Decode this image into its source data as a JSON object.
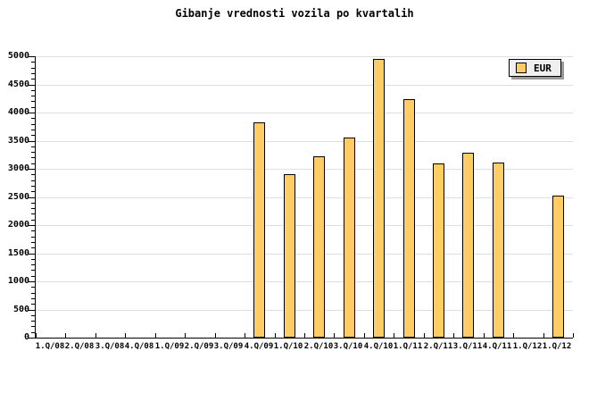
{
  "title": "Gibanje vrednosti vozila po kvartalih",
  "legend": {
    "label": "EUR"
  },
  "colors": {
    "background": "#FFFFFF",
    "bar_fill": "#FFCC66",
    "bar_border": "#000000",
    "grid": "#DEDEDE",
    "axis": "#000000",
    "tick": "#000000",
    "text": "#000000",
    "legend_bg": "#EFEFEF",
    "legend_border": "#000000",
    "legend_shadow": "#999999"
  },
  "chart_data": {
    "type": "bar",
    "title": "Gibanje vrednosti vozila po kvartalih",
    "xlabel": "",
    "ylabel": "",
    "categories": [
      "1.Q/08",
      "2.Q/08",
      "3.Q/08",
      "4.Q/08",
      "1.Q/09",
      "2.Q/09",
      "3.Q/09",
      "4.Q/09",
      "1.Q/10",
      "2.Q/10",
      "3.Q/10",
      "4.Q/10",
      "1.Q/11",
      "2.Q/11",
      "3.Q/11",
      "4.Q/11",
      "1.Q/12",
      "1.Q/12"
    ],
    "series": [
      {
        "name": "EUR",
        "values": [
          null,
          null,
          null,
          null,
          null,
          null,
          null,
          3820,
          2900,
          3230,
          3550,
          4960,
          4240,
          3100,
          3290,
          3110,
          null,
          2520
        ]
      }
    ],
    "ylim": [
      0,
      5000
    ],
    "yticks": [
      0,
      500,
      1000,
      1500,
      2000,
      2500,
      3000,
      3500,
      4000,
      4500,
      5000
    ],
    "y_minor_step": 100,
    "grid": "horizontal-major",
    "legend_position": "top-right"
  }
}
